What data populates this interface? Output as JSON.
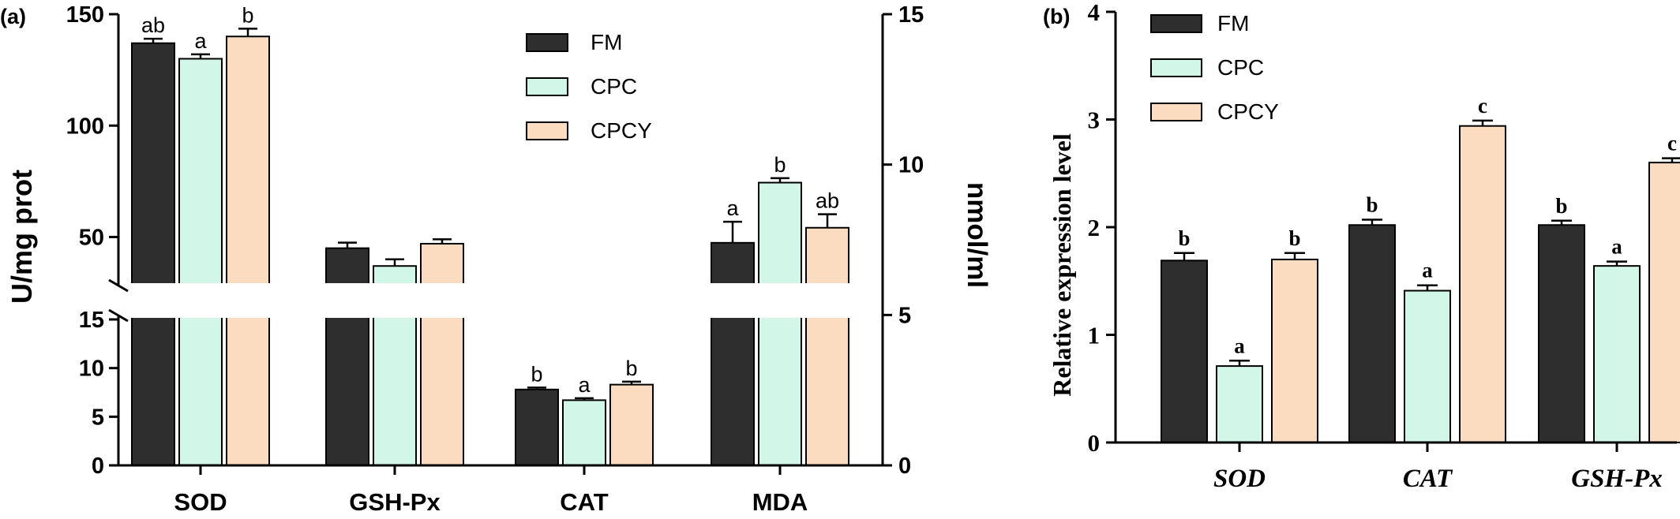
{
  "colors": {
    "FM": "#2e2e2e",
    "CPC": "#d2f7e8",
    "CPCY": "#fcdcc0",
    "stroke": "#000000"
  },
  "chart_data": [
    {
      "panel_label": "(a)",
      "type": "bar",
      "categories": [
        "SOD",
        "GSH-Px",
        "CAT",
        "MDA"
      ],
      "ylabel": "U/mg prot",
      "y2label": "nmol/ml",
      "y_axis_break": true,
      "y_lower_range": [
        0,
        15
      ],
      "y_lower_ticks": [
        "0",
        "5",
        "10",
        "15"
      ],
      "y_upper_range": [
        30,
        150
      ],
      "y_upper_ticks": [
        "50",
        "100",
        "150"
      ],
      "y2_range": [
        0,
        15
      ],
      "y2_ticks": [
        "0",
        "5",
        "10",
        "15"
      ],
      "y2_applies_to": "MDA",
      "legend_position": "top-center",
      "series": [
        {
          "name": "FM",
          "values": [
            137,
            45,
            7.8,
            7.4
          ],
          "errors": [
            2,
            2.5,
            0.2,
            0.7
          ],
          "labels": [
            "ab",
            "",
            "b",
            "a"
          ]
        },
        {
          "name": "CPC",
          "values": [
            130,
            37,
            6.7,
            9.4
          ],
          "errors": [
            2,
            3,
            0.2,
            0.15
          ],
          "labels": [
            "a",
            "",
            "a",
            "b"
          ]
        },
        {
          "name": "CPCY",
          "values": [
            140,
            47,
            8.3,
            7.9
          ],
          "errors": [
            3.5,
            2,
            0.3,
            0.45
          ],
          "labels": [
            "b",
            "",
            "b",
            "ab"
          ]
        }
      ]
    },
    {
      "panel_label": "(b)",
      "type": "bar",
      "categories": [
        "SOD",
        "CAT",
        "GSH-Px"
      ],
      "ylabel": "Relative expression level",
      "ylim": [
        0,
        4
      ],
      "y_ticks": [
        "0",
        "1",
        "2",
        "3",
        "4"
      ],
      "legend_position": "top-left",
      "series": [
        {
          "name": "FM",
          "values": [
            1.69,
            2.02,
            2.02
          ],
          "errors": [
            0.07,
            0.05,
            0.04
          ],
          "labels": [
            "b",
            "b",
            "b"
          ]
        },
        {
          "name": "CPC",
          "values": [
            0.71,
            1.41,
            1.64
          ],
          "errors": [
            0.05,
            0.05,
            0.04
          ],
          "labels": [
            "a",
            "a",
            "a"
          ]
        },
        {
          "name": "CPCY",
          "values": [
            1.7,
            2.94,
            2.6
          ],
          "errors": [
            0.06,
            0.05,
            0.04
          ],
          "labels": [
            "b",
            "c",
            "c"
          ]
        }
      ]
    }
  ]
}
